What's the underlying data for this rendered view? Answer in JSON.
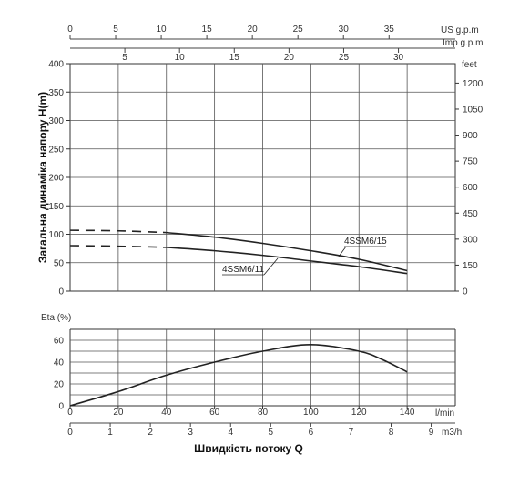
{
  "chart_data": [
    {
      "type": "line",
      "ylabel": "Загальна динаміка напору H(m)",
      "ylim": [
        0,
        400
      ],
      "yticks": [
        0,
        50,
        100,
        150,
        200,
        250,
        300,
        350,
        400
      ],
      "y2_unit": "feet",
      "y2ticks": [
        0,
        150,
        300,
        450,
        600,
        750,
        900,
        1050,
        1200
      ],
      "us_gpm_unit": "US g.p.m",
      "us_gpm_ticks": [
        0,
        5,
        10,
        15,
        20,
        25,
        30,
        35
      ],
      "imp_gpm_unit": "Imp g.p.m",
      "imp_gpm_ticks": [
        5,
        10,
        15,
        20,
        25,
        30
      ],
      "grid": true,
      "series": [
        {
          "name": "4SSM6/15",
          "dashed_segment": [
            [
              0,
              107
            ],
            [
              20,
              106
            ],
            [
              40,
              103
            ]
          ],
          "solid_segment": [
            [
              40,
              103
            ],
            [
              60,
              95
            ],
            [
              80,
              84
            ],
            [
              100,
              71
            ],
            [
              120,
              56
            ],
            [
              140,
              36
            ]
          ]
        },
        {
          "name": "4SSM6/11",
          "dashed_segment": [
            [
              0,
              80
            ],
            [
              20,
              79
            ],
            [
              40,
              77
            ]
          ],
          "solid_segment": [
            [
              40,
              77
            ],
            [
              60,
              71
            ],
            [
              80,
              63
            ],
            [
              100,
              53
            ],
            [
              120,
              43
            ],
            [
              140,
              31
            ]
          ]
        }
      ]
    },
    {
      "type": "line",
      "ylabel": "Eta (%)",
      "ylim": [
        0,
        70
      ],
      "yticks": [
        0,
        20,
        40,
        60
      ],
      "xlim": [
        0,
        160
      ],
      "x_unit": "l/min",
      "xticks": [
        0,
        20,
        40,
        60,
        80,
        100,
        120,
        140
      ],
      "x2_unit": "m3/h",
      "x2ticks": [
        0,
        1,
        2,
        3,
        4,
        5,
        6,
        7,
        8,
        9
      ],
      "xlabel": "Швидкість потоку Q",
      "grid": true,
      "series": [
        {
          "points": [
            [
              0,
              0
            ],
            [
              20,
              13
            ],
            [
              40,
              28
            ],
            [
              60,
              40
            ],
            [
              80,
              50
            ],
            [
              100,
              56
            ],
            [
              120,
              50
            ],
            [
              130,
              42
            ],
            [
              140,
              31
            ]
          ]
        }
      ]
    }
  ]
}
